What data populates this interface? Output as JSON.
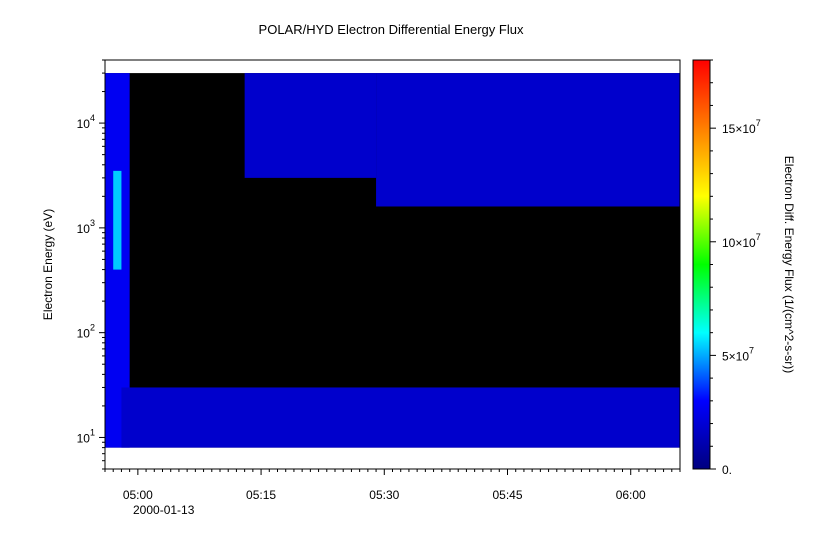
{
  "chart_data": {
    "type": "heatmap",
    "title": "POLAR/HYD  Electron Differential Energy Flux",
    "ylabel": "Electron Energy (eV)",
    "yscale": "log",
    "ylim": [
      5,
      40000
    ],
    "y_ticks": [
      {
        "base": "10",
        "exp": "1",
        "value": 10
      },
      {
        "base": "10",
        "exp": "2",
        "value": 100
      },
      {
        "base": "10",
        "exp": "3",
        "value": 1000
      },
      {
        "base": "10",
        "exp": "4",
        "value": 10000
      }
    ],
    "xlim": [
      "04:56",
      "06:06"
    ],
    "x_ticks": [
      {
        "label": "05:00",
        "time": "05:00"
      },
      {
        "label": "05:15",
        "time": "05:15"
      },
      {
        "label": "05:30",
        "time": "05:30"
      },
      {
        "label": "05:45",
        "time": "05:45"
      },
      {
        "label": "06:00",
        "time": "06:00"
      }
    ],
    "x_date_label": "2000-01-13",
    "colorbar": {
      "label": "Electron Diff. Energy Flux (1/(cm^2-s-sr))",
      "range": [
        0,
        180000000
      ],
      "colormap": [
        "#00007f",
        "#0000ff",
        "#00ffff",
        "#00ff00",
        "#ffff00",
        "#ff7f00",
        "#ff0000"
      ],
      "ticks": [
        {
          "base": "0.",
          "exp": "",
          "value": 0
        },
        {
          "base": "5×10",
          "exp": "7",
          "value": 50000000
        },
        {
          "base": "10×10",
          "exp": "7",
          "value": 100000000
        },
        {
          "base": "15×10",
          "exp": "7",
          "value": 150000000
        }
      ]
    },
    "data_range_energy": [
      8,
      30000
    ],
    "background_color": "#000000",
    "regions": [
      {
        "t0": "04:56",
        "t1": "04:59",
        "e0": 8,
        "e1": 30000,
        "level": 0.15
      },
      {
        "t0": "04:57",
        "t1": "04:58",
        "e0": 400,
        "e1": 3500,
        "level": 0.3
      },
      {
        "t0": "04:58",
        "t1": "06:06",
        "e0": 8,
        "e1": 30,
        "level": 0.1
      },
      {
        "t0": "05:13",
        "t1": "05:29",
        "e0": 3000,
        "e1": 30000,
        "level": 0.1
      },
      {
        "t0": "05:29",
        "t1": "06:06",
        "e0": 1600,
        "e1": 30000,
        "level": 0.1
      }
    ]
  }
}
